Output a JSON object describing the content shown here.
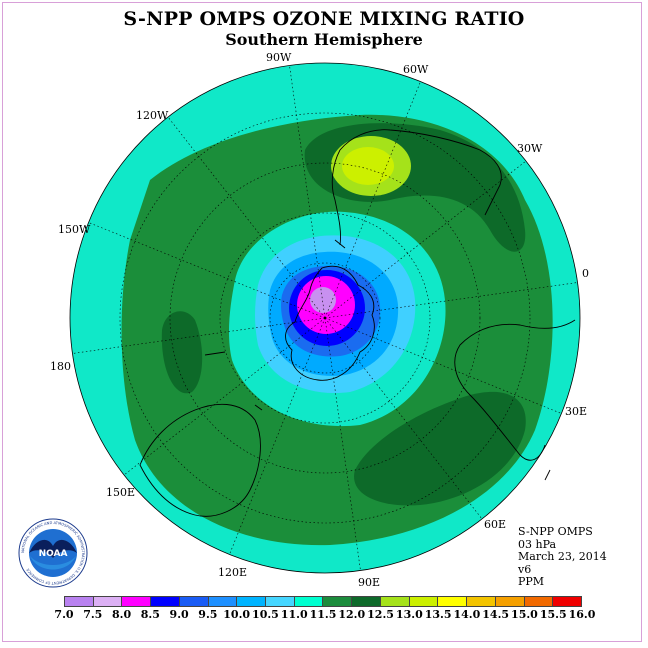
{
  "title": "S-NPP OMPS OZONE MIXING RATIO",
  "subtitle": "Southern Hemisphere",
  "longitude_labels": {
    "w90": "90W",
    "w60": "60W",
    "w30": "30W",
    "e0": "0",
    "e30": "30E",
    "e60": "60E",
    "e90": "90E",
    "e120": "120E",
    "e150": "150E",
    "d180": "180",
    "w150": "150W",
    "w120": "120W"
  },
  "info": {
    "instrument": "S-NPP OMPS",
    "level": "03 hPa",
    "date": "March 23, 2014",
    "version": "v6",
    "units": "PPM"
  },
  "logo": {
    "text": "NOAA",
    "ring_text": "NATIONAL OCEANIC AND ATMOSPHERIC ADMINISTRATION U.S. DEPARTMENT OF COMMERCE"
  },
  "colorbar": {
    "ticks": [
      "7.0",
      "7.5",
      "8.0",
      "8.5",
      "9.0",
      "9.5",
      "10.0",
      "10.5",
      "11.0",
      "11.5",
      "12.0",
      "12.5",
      "13.0",
      "13.5",
      "14.0",
      "14.5",
      "15.0",
      "15.5",
      "16.0"
    ],
    "colors": [
      "#b982f0",
      "#dcb0f4",
      "#ff00ff",
      "#0000ff",
      "#1a5cf5",
      "#1e90ff",
      "#00b4ff",
      "#46d6ff",
      "#00ffd0",
      "#1c8c3c",
      "#0e6a2a",
      "#a5e21a",
      "#ccf000",
      "#ffff00",
      "#f3c400",
      "#f5a000",
      "#f26a00",
      "#f00000",
      "#8b4513"
    ]
  },
  "map_colors": {
    "ocean_disk": "#10e8c8",
    "green_mid": "#1b8e3a",
    "green_dark": "#0d6a29",
    "hole_outer": "#40d0ff",
    "hole_ring1": "#00aaff",
    "hole_ring2": "#1a6cf0",
    "hole_ring3": "#0000ff",
    "hole_core": "#ff00ff",
    "hole_center": "#c890f0",
    "high_ring": "#a5e21a",
    "high_core": "#ccf000"
  }
}
